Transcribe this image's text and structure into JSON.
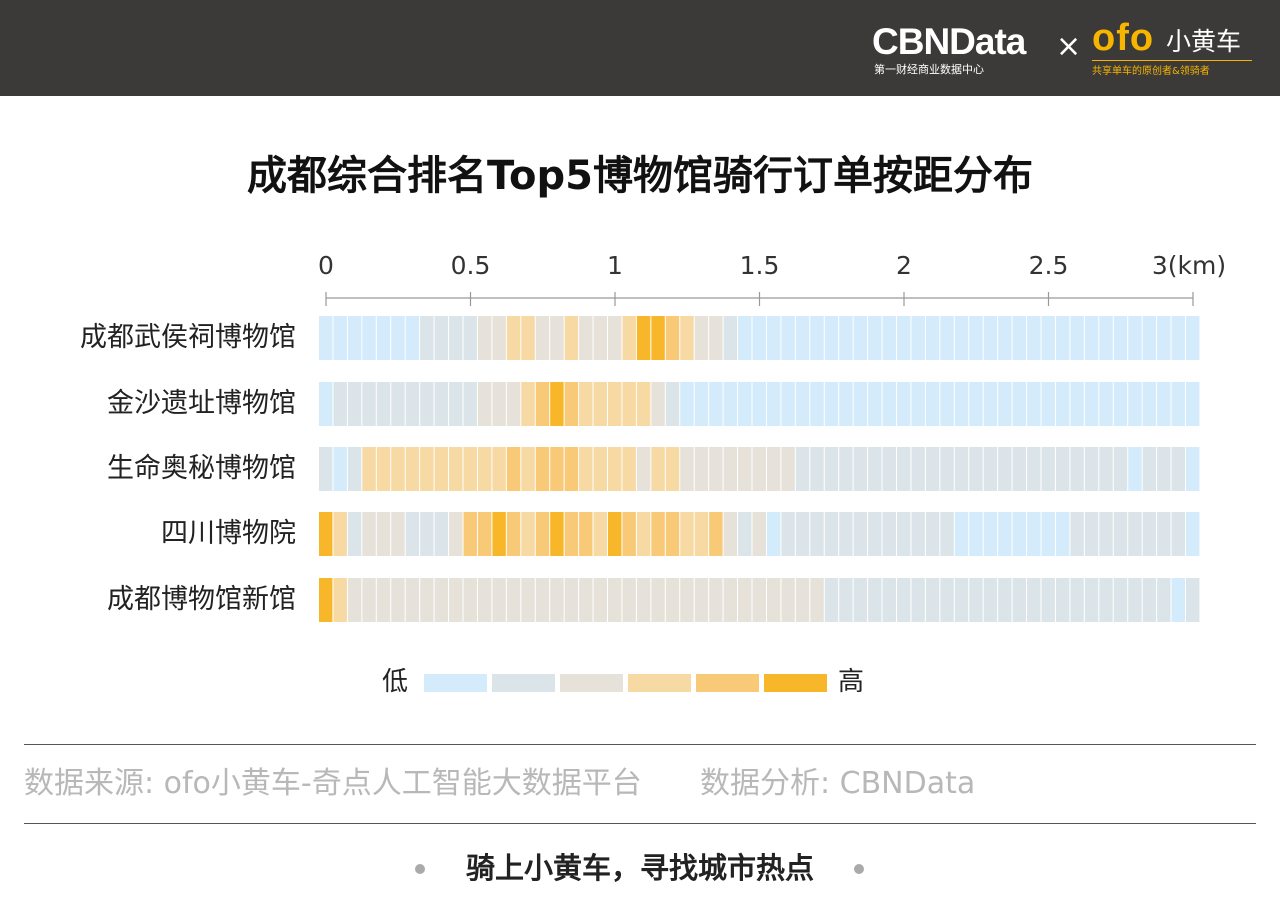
{
  "header": {
    "cbn_logo": "CBNData",
    "cbn_tagline": "第一财经商业数据中心",
    "separator": "×",
    "ofo_logo": "ofo",
    "ofo_name": "小黄车",
    "ofo_tagline": "共享单车的原创者&领骑者"
  },
  "chart_data": {
    "type": "heatmap",
    "title": "成都综合排名Top5博物馆骑行订单按距分布",
    "x_ticks": [
      "0",
      "0.5",
      "1",
      "1.5",
      "2",
      "2.5",
      "3(km)"
    ],
    "xlim": [
      0,
      3
    ],
    "bin_width_km": 0.05,
    "rows": [
      {
        "name": "成都武侯祠博物馆",
        "levels": [
          0,
          0,
          0,
          0,
          0,
          0,
          0,
          1,
          1,
          1,
          1,
          2,
          2,
          3,
          3,
          2,
          2,
          3,
          2,
          2,
          2,
          3,
          5,
          5,
          4,
          3,
          2,
          2,
          1,
          0,
          0,
          0,
          0,
          0,
          0,
          0,
          0,
          0,
          0,
          0,
          0,
          0,
          0,
          0,
          0,
          0,
          0,
          0,
          0,
          0,
          0,
          0,
          0,
          0,
          0,
          0,
          0,
          0,
          0,
          0,
          0
        ]
      },
      {
        "name": "金沙遗址博物馆",
        "levels": [
          0,
          1,
          1,
          1,
          1,
          1,
          1,
          1,
          1,
          1,
          1,
          2,
          2,
          2,
          3,
          4,
          5,
          4,
          3,
          3,
          3,
          3,
          3,
          2,
          1,
          0,
          0,
          0,
          0,
          0,
          0,
          0,
          0,
          0,
          0,
          0,
          0,
          0,
          0,
          0,
          0,
          0,
          0,
          0,
          0,
          0,
          0,
          0,
          0,
          0,
          0,
          0,
          0,
          0,
          0,
          0,
          0,
          0,
          0,
          0,
          0
        ]
      },
      {
        "name": "生命奥秘博物馆",
        "levels": [
          1,
          0,
          1,
          3,
          3,
          3,
          3,
          3,
          3,
          3,
          3,
          3,
          3,
          4,
          3,
          4,
          4,
          4,
          3,
          3,
          3,
          3,
          2,
          3,
          3,
          2,
          2,
          2,
          2,
          2,
          2,
          2,
          2,
          1,
          1,
          1,
          1,
          1,
          1,
          1,
          1,
          1,
          1,
          1,
          1,
          1,
          1,
          1,
          1,
          1,
          1,
          1,
          1,
          1,
          1,
          1,
          0,
          1,
          1,
          1,
          0
        ]
      },
      {
        "name": "四川博物院",
        "levels": [
          5,
          3,
          1,
          2,
          2,
          2,
          1,
          1,
          1,
          2,
          4,
          4,
          5,
          4,
          3,
          4,
          5,
          4,
          4,
          3,
          5,
          4,
          3,
          4,
          4,
          3,
          3,
          4,
          2,
          1,
          2,
          0,
          1,
          1,
          1,
          1,
          1,
          1,
          1,
          1,
          1,
          1,
          1,
          1,
          0,
          0,
          0,
          0,
          0,
          0,
          0,
          0,
          1,
          1,
          1,
          1,
          1,
          1,
          1,
          1,
          0
        ]
      },
      {
        "name": "成都博物馆新馆",
        "levels": [
          5,
          3,
          2,
          2,
          2,
          2,
          2,
          2,
          2,
          2,
          2,
          2,
          2,
          2,
          2,
          2,
          2,
          2,
          2,
          2,
          2,
          2,
          2,
          2,
          2,
          2,
          2,
          2,
          2,
          2,
          2,
          2,
          2,
          2,
          2,
          1,
          1,
          1,
          1,
          1,
          1,
          1,
          1,
          1,
          1,
          1,
          1,
          1,
          1,
          1,
          1,
          1,
          1,
          1,
          1,
          1,
          1,
          1,
          1,
          0,
          1
        ]
      }
    ],
    "legend": {
      "low": "低",
      "high": "高"
    },
    "level_colors": [
      "#d3ebfb",
      "#dbe5e9",
      "#e6e2da",
      "#f7d9a3",
      "#f8ca78",
      "#f8b72a"
    ]
  },
  "footer": {
    "source": "数据来源: ofo小黄车-奇点人工智能大数据平台",
    "analysis": "数据分析: CBNData",
    "slogan": "骑上小黄车，寻找城市热点"
  }
}
